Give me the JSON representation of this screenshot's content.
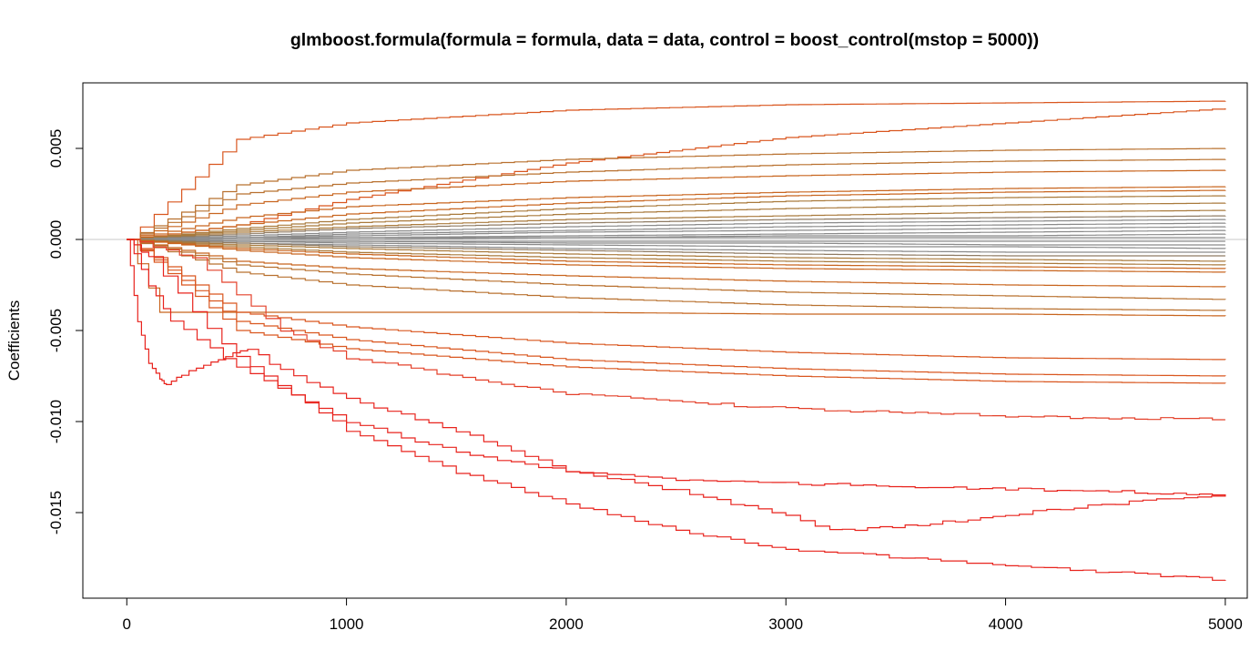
{
  "chart_data": {
    "type": "line",
    "title": "glmboost.formula(formula = formula, data = data, control = boost_control(mstop = 5000))",
    "xlabel": "",
    "ylabel": "Coefficients",
    "xlim": [
      -200,
      5100
    ],
    "ylim": [
      -0.0197,
      0.0086
    ],
    "x_ticks": [
      0,
      1000,
      2000,
      3000,
      4000,
      5000
    ],
    "x_tick_labels": [
      "0",
      "1000",
      "2000",
      "3000",
      "4000",
      "5000"
    ],
    "y_ticks": [
      -0.015,
      -0.01,
      -0.005,
      0.0,
      0.005
    ],
    "y_tick_labels": [
      "-0.015",
      "-0.010",
      "-0.005",
      "0.000",
      "0.005"
    ],
    "reference_line": 0.0,
    "grid": false,
    "legend": "none",
    "colors": {
      "strong_negative": "#e8231d",
      "moderate": "#d9561f",
      "mid": "#c8651f",
      "weak": "#a97a3c",
      "near_zero": "#8a8a8a",
      "zero_line": "#c8c8c8"
    },
    "series": [
      {
        "x": [
          0,
          500,
          1000,
          2000,
          3000,
          4000,
          5000
        ],
        "values": [
          0,
          0.0055,
          0.0064,
          0.0071,
          0.0074,
          0.0075,
          0.0076
        ],
        "color": "#d9561f"
      },
      {
        "x": [
          0,
          500,
          1000,
          2000,
          3000,
          4000,
          5000
        ],
        "values": [
          0,
          0.0008,
          0.0022,
          0.0042,
          0.0056,
          0.0064,
          0.0072
        ],
        "color": "#d9561f"
      },
      {
        "x": [
          0,
          500,
          1000,
          2000,
          3000,
          4000,
          5000
        ],
        "values": [
          0,
          0.003,
          0.0038,
          0.0044,
          0.0047,
          0.0049,
          0.005
        ],
        "color": "#b8702f"
      },
      {
        "x": [
          0,
          500,
          1000,
          2000,
          3000,
          4000,
          5000
        ],
        "values": [
          0,
          0.0025,
          0.0031,
          0.0037,
          0.0041,
          0.0043,
          0.0044
        ],
        "color": "#b8702f"
      },
      {
        "x": [
          0,
          500,
          1000,
          2000,
          3000,
          4000,
          5000
        ],
        "values": [
          0,
          0.0019,
          0.0026,
          0.0032,
          0.0035,
          0.0037,
          0.0038
        ],
        "color": "#c8651f"
      },
      {
        "x": [
          0,
          500,
          1000,
          2000,
          3000,
          4000,
          5000
        ],
        "values": [
          0,
          0.0012,
          0.0018,
          0.0023,
          0.0026,
          0.0028,
          0.0029
        ],
        "color": "#c8651f"
      },
      {
        "x": [
          0,
          500,
          1000,
          2000,
          3000,
          4000,
          5000
        ],
        "values": [
          0,
          0.0008,
          0.0014,
          0.002,
          0.0024,
          0.0026,
          0.0027
        ],
        "color": "#c8651f"
      },
      {
        "x": [
          0,
          500,
          1000,
          2000,
          3000,
          4000,
          5000
        ],
        "values": [
          0,
          0.0006,
          0.0011,
          0.0017,
          0.0021,
          0.0023,
          0.0024
        ],
        "color": "#a97a3c"
      },
      {
        "x": [
          0,
          500,
          1000,
          2000,
          3000,
          4000,
          5000
        ],
        "values": [
          0,
          0.0005,
          0.0009,
          0.0014,
          0.0017,
          0.0019,
          0.002
        ],
        "color": "#a97a3c"
      },
      {
        "x": [
          0,
          500,
          1000,
          2000,
          3000,
          4000,
          5000
        ],
        "values": [
          0,
          0.0004,
          0.0007,
          0.0011,
          0.0013,
          0.0015,
          0.0016
        ],
        "color": "#a97a3c"
      },
      {
        "x": [
          0,
          500,
          1000,
          2000,
          3000,
          4000,
          5000
        ],
        "values": [
          0,
          0.0003,
          0.0006,
          0.0009,
          0.0011,
          0.0012,
          0.0013
        ],
        "color": "#8f7b63"
      },
      {
        "x": [
          0,
          500,
          1000,
          2000,
          3000,
          4000,
          5000
        ],
        "values": [
          0,
          0.0002,
          0.0004,
          0.0007,
          0.0009,
          0.001,
          0.0011
        ],
        "color": "#8a8a8a"
      },
      {
        "x": [
          0,
          500,
          1000,
          2000,
          3000,
          4000,
          5000
        ],
        "values": [
          0,
          0.0001,
          0.0003,
          0.0005,
          0.0007,
          0.0008,
          0.0009
        ],
        "color": "#8a8a8a"
      },
      {
        "x": [
          0,
          500,
          1000,
          2000,
          3000,
          4000,
          5000
        ],
        "values": [
          0,
          0.0001,
          0.0002,
          0.0004,
          0.0005,
          0.0006,
          0.0007
        ],
        "color": "#8a8a8a"
      },
      {
        "x": [
          0,
          500,
          1000,
          2000,
          3000,
          4000,
          5000
        ],
        "values": [
          0,
          0.0001,
          0.0001,
          0.0002,
          0.0003,
          0.0004,
          0.0005
        ],
        "color": "#8a8a8a"
      },
      {
        "x": [
          0,
          500,
          1000,
          2000,
          3000,
          4000,
          5000
        ],
        "values": [
          0,
          0.0,
          0.0001,
          0.0001,
          0.0002,
          0.0002,
          0.0003
        ],
        "color": "#8a8a8a"
      },
      {
        "x": [
          0,
          500,
          1000,
          2000,
          3000,
          4000,
          5000
        ],
        "values": [
          0,
          0.0,
          0.0,
          0.0001,
          0.0001,
          0.0001,
          0.0001
        ],
        "color": "#8a8a8a"
      },
      {
        "x": [
          0,
          500,
          1000,
          2000,
          3000,
          4000,
          5000
        ],
        "values": [
          0,
          -0.0001,
          -0.0001,
          -0.0001,
          -0.0001,
          -0.0001,
          -0.0001
        ],
        "color": "#8a8a8a"
      },
      {
        "x": [
          0,
          500,
          1000,
          2000,
          3000,
          4000,
          5000
        ],
        "values": [
          0,
          -0.0001,
          -0.0001,
          -0.0002,
          -0.0002,
          -0.0003,
          -0.0003
        ],
        "color": "#8a8a8a"
      },
      {
        "x": [
          0,
          500,
          1000,
          2000,
          3000,
          4000,
          5000
        ],
        "values": [
          0,
          -0.0001,
          -0.0002,
          -0.0003,
          -0.0004,
          -0.0004,
          -0.0005
        ],
        "color": "#8a8a8a"
      },
      {
        "x": [
          0,
          500,
          1000,
          2000,
          3000,
          4000,
          5000
        ],
        "values": [
          0,
          -0.0002,
          -0.0003,
          -0.0005,
          -0.0006,
          -0.0007,
          -0.0007
        ],
        "color": "#8a8a8a"
      },
      {
        "x": [
          0,
          500,
          1000,
          2000,
          3000,
          4000,
          5000
        ],
        "values": [
          0,
          -0.0002,
          -0.0004,
          -0.0006,
          -0.0008,
          -0.0009,
          -0.0009
        ],
        "color": "#8f7b63"
      },
      {
        "x": [
          0,
          500,
          1000,
          2000,
          3000,
          4000,
          5000
        ],
        "values": [
          0,
          -0.0003,
          -0.0005,
          -0.0008,
          -0.001,
          -0.0011,
          -0.0012
        ],
        "color": "#a97a3c"
      },
      {
        "x": [
          0,
          500,
          1000,
          2000,
          3000,
          4000,
          5000
        ],
        "values": [
          0,
          -0.0004,
          -0.0007,
          -0.001,
          -0.0012,
          -0.0013,
          -0.0014
        ],
        "color": "#a97a3c"
      },
      {
        "x": [
          0,
          500,
          1000,
          2000,
          3000,
          4000,
          5000
        ],
        "values": [
          0,
          -0.0005,
          -0.0008,
          -0.0012,
          -0.0014,
          -0.0015,
          -0.0016
        ],
        "color": "#c8651f"
      },
      {
        "x": [
          0,
          500,
          1000,
          2000,
          3000,
          4000,
          5000
        ],
        "values": [
          0,
          -0.0006,
          -0.001,
          -0.0014,
          -0.0016,
          -0.0017,
          -0.0018
        ],
        "color": "#c8651f"
      },
      {
        "x": [
          0,
          500,
          1000,
          2000,
          3000,
          4000,
          5000
        ],
        "values": [
          0,
          -0.0012,
          -0.0016,
          -0.002,
          -0.0023,
          -0.0025,
          -0.0026
        ],
        "color": "#c8651f"
      },
      {
        "x": [
          0,
          500,
          1000,
          2000,
          3000,
          4000,
          5000
        ],
        "values": [
          0,
          -0.0014,
          -0.0019,
          -0.0025,
          -0.0029,
          -0.0031,
          -0.0033
        ],
        "color": "#b8702f"
      },
      {
        "x": [
          0,
          500,
          1000,
          2000,
          3000,
          4000,
          5000
        ],
        "values": [
          0,
          -0.0018,
          -0.0025,
          -0.0032,
          -0.0036,
          -0.0038,
          -0.0039
        ],
        "color": "#b8702f"
      },
      {
        "x": [
          0,
          150,
          300,
          1000,
          2000,
          3000,
          4000,
          5000
        ],
        "values": [
          0,
          -0.004,
          -0.004,
          -0.004,
          -0.004,
          -0.0041,
          -0.0041,
          -0.0042
        ],
        "color": "#c8651f"
      },
      {
        "x": [
          0,
          500,
          1000,
          2000,
          3000,
          4000,
          5000
        ],
        "values": [
          0,
          -0.004,
          -0.0048,
          -0.0057,
          -0.0062,
          -0.0065,
          -0.0066
        ],
        "color": "#d9561f"
      },
      {
        "x": [
          0,
          500,
          1000,
          2000,
          3000,
          4000,
          5000
        ],
        "values": [
          0,
          -0.0045,
          -0.0055,
          -0.0066,
          -0.0071,
          -0.0074,
          -0.0075
        ],
        "color": "#d9561f"
      },
      {
        "x": [
          0,
          500,
          1000,
          2000,
          3000,
          4000,
          5000
        ],
        "values": [
          0,
          -0.005,
          -0.006,
          -0.007,
          -0.0075,
          -0.0078,
          -0.0079
        ],
        "color": "#d9561f"
      },
      {
        "x": [
          0,
          300,
          500,
          700,
          1000,
          2000,
          3000,
          4000,
          5000
        ],
        "values": [
          0,
          -0.001,
          -0.003,
          -0.005,
          -0.0065,
          -0.0085,
          -0.0093,
          -0.0097,
          -0.0099
        ],
        "color": "#e4402a"
      },
      {
        "x": [
          0,
          50,
          100,
          150,
          180,
          250,
          350,
          450,
          550,
          700,
          1000,
          1500,
          2000,
          2500,
          3000,
          3200,
          3600,
          4000,
          4500,
          5000
        ],
        "values": [
          0,
          -0.0045,
          -0.0068,
          -0.0077,
          -0.008,
          -0.0074,
          -0.0069,
          -0.0064,
          -0.006,
          -0.0072,
          -0.0088,
          -0.0105,
          -0.0127,
          -0.0138,
          -0.0152,
          -0.016,
          -0.0157,
          -0.0151,
          -0.0145,
          -0.014
        ],
        "color": "#e8231d"
      },
      {
        "x": [
          0,
          100,
          200,
          500,
          1000,
          1500,
          2000,
          2500,
          3000,
          4000,
          5000
        ],
        "values": [
          0,
          -0.0025,
          -0.0045,
          -0.007,
          -0.01,
          -0.0117,
          -0.0127,
          -0.0132,
          -0.0134,
          -0.0137,
          -0.014
        ],
        "color": "#e8231d"
      },
      {
        "x": [
          0,
          100,
          300,
          500,
          1000,
          1500,
          2000,
          2500,
          3000,
          4000,
          5000
        ],
        "values": [
          0,
          -0.001,
          -0.004,
          -0.0065,
          -0.0105,
          -0.0128,
          -0.0145,
          -0.016,
          -0.017,
          -0.0179,
          -0.0187
        ],
        "color": "#e8231d"
      }
    ]
  }
}
